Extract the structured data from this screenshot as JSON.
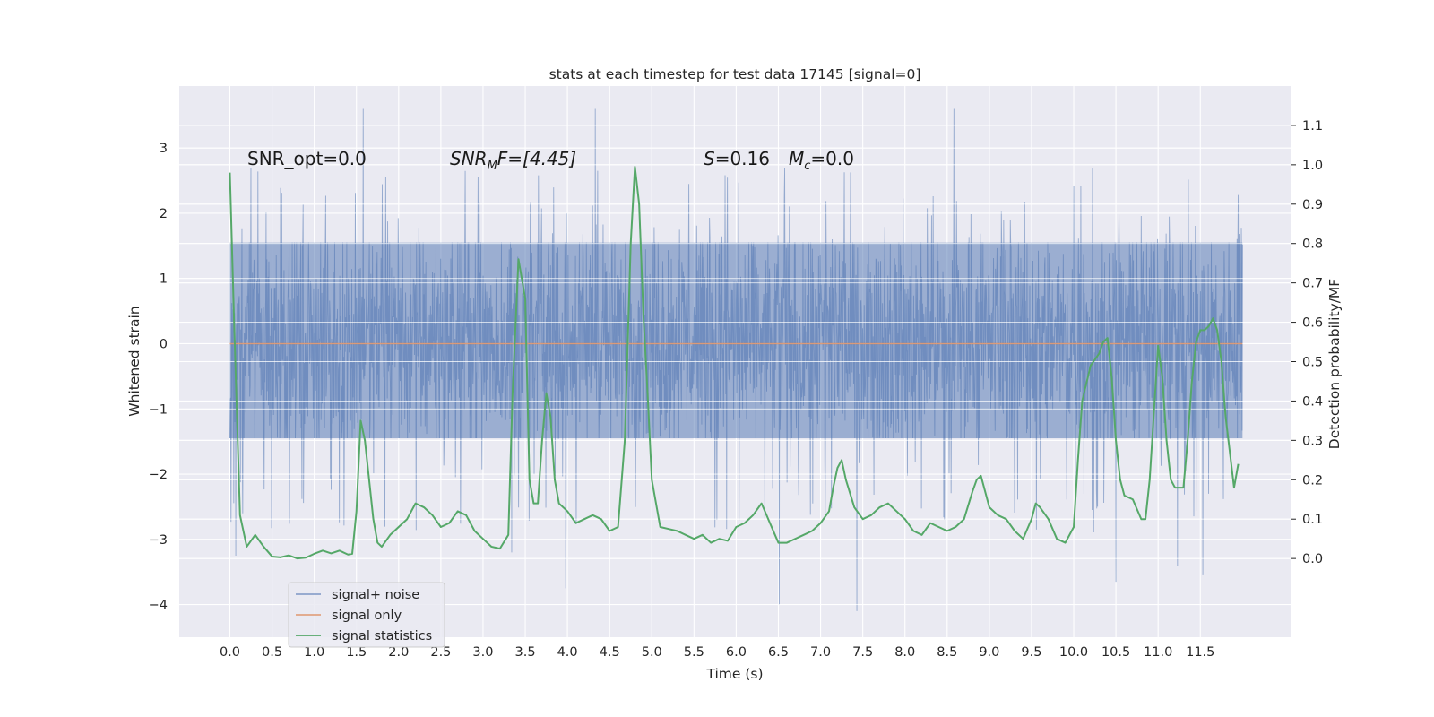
{
  "chart_data": {
    "type": "line",
    "title": "stats at each timestep for test data 17145 [signal=0]",
    "xlabel": "Time (s)",
    "ylabel": "Whitened strain",
    "y2label": "Detection probability/MF",
    "xlim": [
      -0.6,
      12.57
    ],
    "ylim": [
      -4.5,
      3.95
    ],
    "y2lim": [
      -0.2,
      1.2
    ],
    "x_ticks": [
      0.0,
      0.5,
      1.0,
      1.5,
      2.0,
      2.5,
      3.0,
      3.5,
      4.0,
      4.5,
      5.0,
      5.5,
      6.0,
      6.5,
      7.0,
      7.5,
      8.0,
      8.5,
      9.0,
      9.5,
      10.0,
      10.5,
      11.0,
      11.5
    ],
    "x_tick_labels": [
      "0.0",
      "0.5",
      "1.0",
      "1.5",
      "2.0",
      "2.5",
      "3.0",
      "3.5",
      "4.0",
      "4.5",
      "5.0",
      "5.5",
      "6.0",
      "6.5",
      "7.0",
      "7.5",
      "8.0",
      "8.5",
      "9.0",
      "9.5",
      "10.0",
      "10.5",
      "11.0",
      "11.5"
    ],
    "y_ticks": [
      -4,
      -3,
      -2,
      -1,
      0,
      1,
      2,
      3
    ],
    "y_tick_labels": [
      "−4",
      "−3",
      "−2",
      "−1",
      "0",
      "1",
      "2",
      "3"
    ],
    "y2_ticks": [
      0.0,
      0.1,
      0.2,
      0.3,
      0.4,
      0.5,
      0.6,
      0.7,
      0.8,
      0.9,
      1.0,
      1.1
    ],
    "y2_tick_labels": [
      "0.0",
      "0.1",
      "0.2",
      "0.3",
      "0.4",
      "0.5",
      "0.6",
      "0.7",
      "0.8",
      "0.9",
      "1.0",
      "1.1"
    ],
    "grid": true,
    "legend_position": "lower-left",
    "noise_series": {
      "name": "signal+ noise",
      "color": "#4c72b0",
      "t_start": 0.0,
      "t_end": 12.0,
      "typical_range": [
        -1.45,
        1.55
      ],
      "notable_extremes": [
        {
          "x": 0.07,
          "y": -3.25
        },
        {
          "x": 1.58,
          "y": 3.6
        },
        {
          "x": 3.34,
          "y": -3.2
        },
        {
          "x": 3.98,
          "y": -3.75
        },
        {
          "x": 4.33,
          "y": 3.6
        },
        {
          "x": 6.51,
          "y": -4.0
        },
        {
          "x": 7.43,
          "y": -4.1
        },
        {
          "x": 8.58,
          "y": 3.6
        },
        {
          "x": 10.5,
          "y": -3.65
        },
        {
          "x": 11.23,
          "y": -3.4
        },
        {
          "x": 11.53,
          "y": -3.55
        }
      ]
    },
    "series": [
      {
        "name": "signal only",
        "color": "#dd8452",
        "x": [
          0.0,
          12.0
        ],
        "y": [
          0.0,
          0.0
        ]
      },
      {
        "name": "signal statistics",
        "color": "#55a868",
        "axis": "right",
        "x": [
          0.0,
          0.05,
          0.12,
          0.2,
          0.3,
          0.4,
          0.5,
          0.6,
          0.7,
          0.8,
          0.9,
          1.0,
          1.1,
          1.2,
          1.3,
          1.4,
          1.45,
          1.5,
          1.55,
          1.6,
          1.65,
          1.7,
          1.75,
          1.8,
          1.9,
          2.0,
          2.1,
          2.2,
          2.3,
          2.4,
          2.5,
          2.6,
          2.7,
          2.8,
          2.9,
          3.0,
          3.1,
          3.2,
          3.3,
          3.35,
          3.42,
          3.5,
          3.55,
          3.6,
          3.65,
          3.7,
          3.75,
          3.8,
          3.85,
          3.9,
          4.0,
          4.1,
          4.2,
          4.3,
          4.4,
          4.5,
          4.6,
          4.68,
          4.75,
          4.8,
          4.85,
          4.9,
          4.95,
          5.0,
          5.1,
          5.2,
          5.3,
          5.4,
          5.5,
          5.6,
          5.7,
          5.8,
          5.9,
          6.0,
          6.1,
          6.2,
          6.3,
          6.4,
          6.5,
          6.6,
          6.7,
          6.8,
          6.9,
          7.0,
          7.1,
          7.15,
          7.2,
          7.25,
          7.3,
          7.4,
          7.5,
          7.6,
          7.7,
          7.8,
          7.9,
          8.0,
          8.1,
          8.2,
          8.3,
          8.4,
          8.5,
          8.6,
          8.7,
          8.8,
          8.85,
          8.9,
          9.0,
          9.1,
          9.2,
          9.3,
          9.4,
          9.5,
          9.55,
          9.6,
          9.7,
          9.8,
          9.9,
          10.0,
          10.05,
          10.1,
          10.2,
          10.3,
          10.35,
          10.4,
          10.45,
          10.5,
          10.55,
          10.6,
          10.7,
          10.8,
          10.85,
          10.9,
          11.0,
          11.05,
          11.1,
          11.15,
          11.2,
          11.3,
          11.35,
          11.4,
          11.45,
          11.5,
          11.55,
          11.6,
          11.65,
          11.7,
          11.75,
          11.8,
          11.9,
          11.95
        ],
        "y": [
          0.98,
          0.6,
          0.11,
          0.03,
          0.06,
          0.03,
          0.005,
          0.003,
          0.008,
          0.0,
          0.002,
          0.012,
          0.02,
          0.013,
          0.02,
          0.01,
          0.012,
          0.12,
          0.35,
          0.3,
          0.2,
          0.1,
          0.04,
          0.03,
          0.06,
          0.08,
          0.1,
          0.14,
          0.13,
          0.11,
          0.08,
          0.09,
          0.12,
          0.11,
          0.07,
          0.05,
          0.03,
          0.025,
          0.06,
          0.42,
          0.76,
          0.66,
          0.2,
          0.14,
          0.14,
          0.3,
          0.42,
          0.36,
          0.2,
          0.14,
          0.12,
          0.09,
          0.1,
          0.11,
          0.1,
          0.07,
          0.08,
          0.3,
          0.8,
          0.995,
          0.9,
          0.62,
          0.42,
          0.2,
          0.08,
          0.075,
          0.07,
          0.06,
          0.05,
          0.06,
          0.04,
          0.05,
          0.045,
          0.08,
          0.09,
          0.11,
          0.14,
          0.09,
          0.04,
          0.04,
          0.05,
          0.06,
          0.07,
          0.09,
          0.12,
          0.18,
          0.23,
          0.25,
          0.2,
          0.13,
          0.1,
          0.11,
          0.13,
          0.14,
          0.12,
          0.1,
          0.07,
          0.06,
          0.09,
          0.08,
          0.07,
          0.08,
          0.1,
          0.17,
          0.2,
          0.21,
          0.13,
          0.11,
          0.1,
          0.07,
          0.05,
          0.1,
          0.14,
          0.13,
          0.1,
          0.05,
          0.04,
          0.08,
          0.25,
          0.4,
          0.49,
          0.52,
          0.55,
          0.56,
          0.46,
          0.3,
          0.2,
          0.16,
          0.15,
          0.1,
          0.1,
          0.2,
          0.54,
          0.46,
          0.3,
          0.2,
          0.18,
          0.18,
          0.3,
          0.45,
          0.55,
          0.58,
          0.58,
          0.59,
          0.61,
          0.58,
          0.5,
          0.36,
          0.18,
          0.24
        ]
      }
    ],
    "annotations": {
      "snr_opt": "SNR_opt=0.0",
      "snr_mf_main": "SNR",
      "snr_mf_sub": "M",
      "snr_mf_rest": "F=[4.45]",
      "s_var": "S",
      "s_val": "=0.16",
      "mc_var": "M",
      "mc_sub": "c",
      "mc_val": "=0.0"
    },
    "colors": {
      "plot_bg": "#eaeaf2",
      "grid": "#ffffff",
      "signal_noise": "#4c72b0",
      "signal_only": "#dd8452",
      "signal_statistics": "#55a868"
    }
  }
}
